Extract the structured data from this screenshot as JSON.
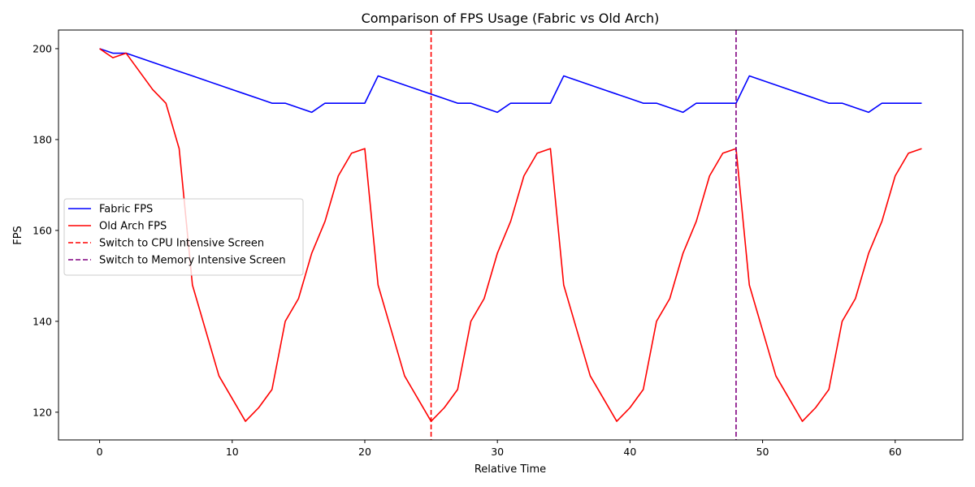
{
  "chart_data": {
    "type": "line",
    "title": "Comparison of FPS Usage (Fabric vs Old Arch)",
    "xlabel": "Relative Time",
    "ylabel": "FPS",
    "xlim": [
      -3.1,
      65.1
    ],
    "ylim": [
      113.9,
      204.1
    ],
    "xticks": [
      0,
      10,
      20,
      30,
      40,
      50,
      60
    ],
    "yticks": [
      120,
      140,
      160,
      180,
      200
    ],
    "grid": false,
    "legend_position": "center-left",
    "x": [
      0,
      1,
      2,
      3,
      4,
      5,
      6,
      7,
      8,
      9,
      10,
      11,
      12,
      13,
      14,
      15,
      16,
      17,
      18,
      19,
      20,
      21,
      22,
      23,
      24,
      25,
      26,
      27,
      28,
      29,
      30,
      31,
      32,
      33,
      34,
      35,
      36,
      37,
      38,
      39,
      40,
      41,
      42,
      43,
      44,
      45,
      46,
      47,
      48,
      49,
      50,
      51,
      52,
      53,
      54,
      55,
      56,
      57,
      58,
      59,
      60,
      61,
      62
    ],
    "series": [
      {
        "name": "Fabric FPS",
        "color": "#0000ff",
        "style": "solid",
        "values": [
          200,
          199,
          199,
          198,
          197,
          196,
          195,
          194,
          193,
          192,
          191,
          190,
          189,
          188,
          188,
          187,
          186,
          188,
          188,
          188,
          188,
          194,
          193,
          192,
          191,
          190,
          189,
          188,
          188,
          187,
          186,
          188,
          188,
          188,
          188,
          194,
          193,
          192,
          191,
          190,
          189,
          188,
          188,
          187,
          186,
          188,
          188,
          188,
          188,
          194,
          193,
          192,
          191,
          190,
          189,
          188,
          188,
          187,
          186,
          188,
          188,
          188,
          188
        ]
      },
      {
        "name": "Old Arch FPS",
        "color": "#ff0000",
        "style": "solid",
        "values": [
          200,
          198,
          199,
          195,
          191,
          188,
          178,
          148,
          138,
          128,
          123,
          118,
          121,
          125,
          140,
          145,
          155,
          162,
          172,
          177,
          178,
          148,
          138,
          128,
          123,
          118,
          121,
          125,
          140,
          145,
          155,
          162,
          172,
          177,
          178,
          148,
          138,
          128,
          123,
          118,
          121,
          125,
          140,
          145,
          155,
          162,
          172,
          177,
          178,
          148,
          138,
          128,
          123,
          118,
          121,
          125,
          140,
          145,
          155,
          162,
          172,
          177,
          178
        ]
      }
    ],
    "vlines": [
      {
        "name": "Switch to CPU Intensive Screen",
        "x": 25,
        "color": "#ff0000",
        "style": "dashed"
      },
      {
        "name": "Switch to Memory Intensive Screen",
        "x": 48,
        "color": "#800080",
        "style": "dashed"
      }
    ]
  }
}
